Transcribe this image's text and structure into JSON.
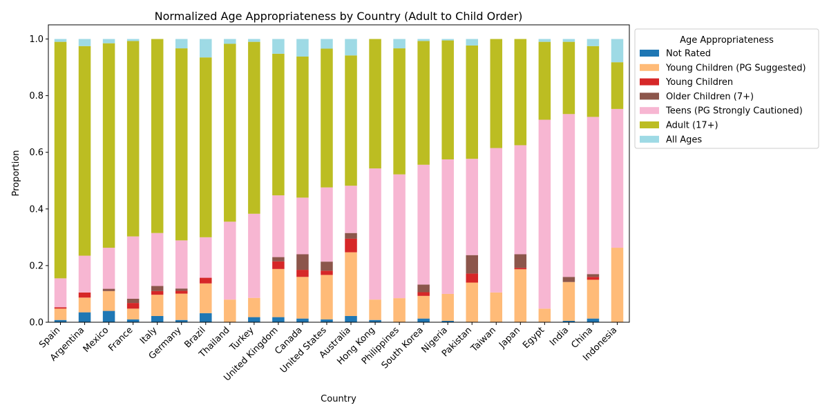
{
  "chart_data": {
    "type": "bar",
    "stacked": true,
    "title": "Normalized Age Appropriateness by Country (Adult to Child Order)",
    "xlabel": "Country",
    "ylabel": "Proportion",
    "ylim": [
      0,
      1.05
    ],
    "yticks": [
      "0.0",
      "0.2",
      "0.4",
      "0.6",
      "0.8",
      "1.0"
    ],
    "grid": false,
    "legend": {
      "title": "Age Appropriateness",
      "placement": "outside-right-top"
    },
    "categories": [
      "Spain",
      "Argentina",
      "Mexico",
      "France",
      "Italy",
      "Germany",
      "Brazil",
      "Thailand",
      "Turkey",
      "United Kingdom",
      "Canada",
      "United States",
      "Australia",
      "Hong Kong",
      "Philippines",
      "South Korea",
      "Nigeria",
      "Pakistan",
      "Taiwan",
      "Japan",
      "Egypt",
      "India",
      "China",
      "Indonesia"
    ],
    "series": [
      {
        "name": "Not Rated",
        "color": "#1f77b4",
        "values": [
          0.008,
          0.035,
          0.04,
          0.01,
          0.022,
          0.008,
          0.032,
          0.0,
          0.018,
          0.018,
          0.013,
          0.01,
          0.022,
          0.008,
          0.0,
          0.013,
          0.005,
          0.0,
          0.0,
          0.0,
          0.0,
          0.005,
          0.013,
          0.0
        ]
      },
      {
        "name": "Young Children (PG Suggested)",
        "color": "#ffbb78",
        "values": [
          0.04,
          0.052,
          0.07,
          0.038,
          0.075,
          0.093,
          0.105,
          0.08,
          0.068,
          0.17,
          0.147,
          0.157,
          0.225,
          0.072,
          0.085,
          0.08,
          0.095,
          0.14,
          0.105,
          0.187,
          0.048,
          0.137,
          0.137,
          0.263
        ]
      },
      {
        "name": "Young Children",
        "color": "#d62728",
        "values": [
          0.005,
          0.018,
          0.0,
          0.02,
          0.013,
          0.01,
          0.02,
          0.0,
          0.0,
          0.027,
          0.025,
          0.015,
          0.048,
          0.0,
          0.0,
          0.013,
          0.0,
          0.032,
          0.0,
          0.005,
          0.0,
          0.0,
          0.01,
          0.0
        ]
      },
      {
        "name": "Older Children (7+)",
        "color": "#8c564b",
        "values": [
          0.0,
          0.0,
          0.008,
          0.015,
          0.018,
          0.008,
          0.0,
          0.0,
          0.0,
          0.015,
          0.055,
          0.032,
          0.02,
          0.0,
          0.0,
          0.027,
          0.0,
          0.065,
          0.0,
          0.048,
          0.0,
          0.018,
          0.01,
          0.0
        ]
      },
      {
        "name": "Teens (PG Strongly Cautioned)",
        "color": "#f7b6d2",
        "values": [
          0.102,
          0.13,
          0.145,
          0.22,
          0.187,
          0.17,
          0.143,
          0.275,
          0.297,
          0.218,
          0.2,
          0.262,
          0.167,
          0.463,
          0.437,
          0.423,
          0.475,
          0.34,
          0.51,
          0.385,
          0.667,
          0.575,
          0.555,
          0.49
        ]
      },
      {
        "name": "Adult (17+)",
        "color": "#bcbd22",
        "values": [
          0.835,
          0.74,
          0.722,
          0.69,
          0.685,
          0.678,
          0.635,
          0.628,
          0.607,
          0.5,
          0.498,
          0.49,
          0.46,
          0.457,
          0.445,
          0.437,
          0.42,
          0.4,
          0.385,
          0.375,
          0.275,
          0.255,
          0.25,
          0.165
        ]
      },
      {
        "name": "All Ages",
        "color": "#9edae5",
        "values": [
          0.01,
          0.025,
          0.015,
          0.007,
          0.0,
          0.033,
          0.065,
          0.017,
          0.01,
          0.052,
          0.062,
          0.034,
          0.058,
          0.0,
          0.033,
          0.007,
          0.005,
          0.023,
          0.0,
          0.0,
          0.01,
          0.01,
          0.025,
          0.082
        ]
      }
    ]
  }
}
